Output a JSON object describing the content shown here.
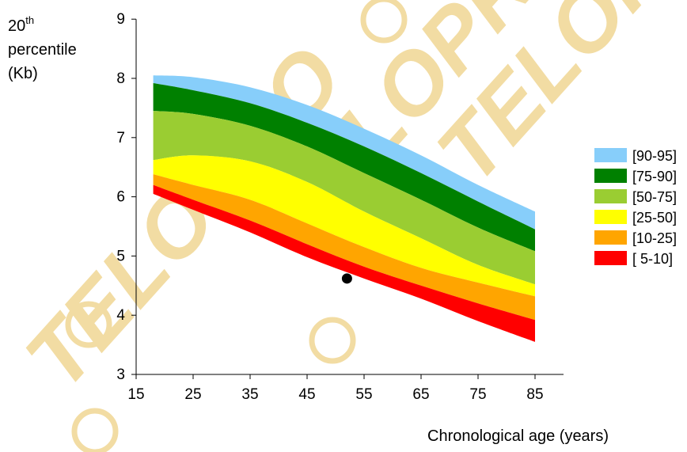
{
  "ylabel": {
    "line1_base": "20",
    "line1_sup": "th",
    "line2": "percentile",
    "line3": "(Kb)"
  },
  "xlabel": "Chronological age (years)",
  "watermark": {
    "text": "TELOPRO",
    "color": "#f2dca3"
  },
  "chart_data": {
    "type": "area",
    "title": "",
    "xlabel": "Chronological age (years)",
    "ylabel": "20th percentile (Kb)",
    "xlim": [
      15,
      90
    ],
    "ylim": [
      3,
      9
    ],
    "xticks": [
      15,
      25,
      35,
      45,
      55,
      65,
      75,
      85
    ],
    "yticks": [
      3,
      4,
      5,
      6,
      7,
      8,
      9
    ],
    "grid": false,
    "legend_position": "right",
    "x": [
      18,
      25,
      35,
      45,
      55,
      65,
      75,
      85
    ],
    "boundaries": [
      {
        "name": "p95",
        "values": [
          8.05,
          8.02,
          7.85,
          7.55,
          7.15,
          6.7,
          6.2,
          5.75
        ]
      },
      {
        "name": "p90",
        "values": [
          7.92,
          7.8,
          7.58,
          7.25,
          6.85,
          6.4,
          5.92,
          5.45
        ]
      },
      {
        "name": "p75",
        "values": [
          7.45,
          7.4,
          7.2,
          6.85,
          6.4,
          5.95,
          5.48,
          5.08
        ]
      },
      {
        "name": "p50",
        "values": [
          6.62,
          6.7,
          6.6,
          6.25,
          5.75,
          5.3,
          4.85,
          4.52
        ]
      },
      {
        "name": "p25",
        "values": [
          6.38,
          6.2,
          5.95,
          5.55,
          5.15,
          4.8,
          4.55,
          4.32
        ]
      },
      {
        "name": "p10",
        "values": [
          6.2,
          5.95,
          5.6,
          5.2,
          4.82,
          4.5,
          4.2,
          3.92
        ]
      },
      {
        "name": "p5",
        "values": [
          6.05,
          5.78,
          5.4,
          4.98,
          4.62,
          4.28,
          3.9,
          3.55
        ]
      }
    ],
    "bands": [
      {
        "label": "[90-95]",
        "color": "#87cefa",
        "upper": "p95",
        "lower": "p90"
      },
      {
        "label": "[75-90]",
        "color": "#008000",
        "upper": "p90",
        "lower": "p75"
      },
      {
        "label": "[50-75]",
        "color": "#9acd32",
        "upper": "p75",
        "lower": "p50"
      },
      {
        "label": "[25-50]",
        "color": "#ffff00",
        "upper": "p50",
        "lower": "p25"
      },
      {
        "label": "[10-25]",
        "color": "#ffa500",
        "upper": "p25",
        "lower": "p10"
      },
      {
        "label": "[ 5-10]",
        "color": "#ff0000",
        "upper": "p10",
        "lower": "p5"
      }
    ],
    "point": {
      "x": 52,
      "y": 4.62,
      "color": "#000000"
    }
  }
}
